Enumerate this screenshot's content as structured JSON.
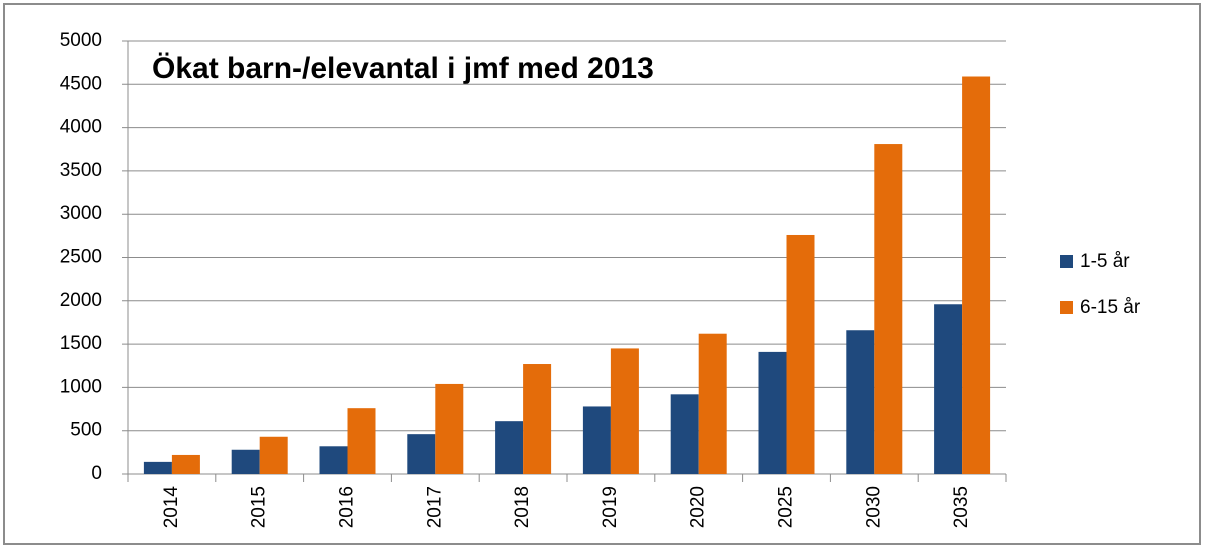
{
  "chart_data": {
    "type": "bar",
    "title": "Ökat barn-/elevantal i jmf med 2013",
    "categories": [
      "2014",
      "2015",
      "2016",
      "2017",
      "2018",
      "2019",
      "2020",
      "2025",
      "2030",
      "2035"
    ],
    "series": [
      {
        "name": "1-5 år",
        "color": "#1f497d",
        "values": [
          140,
          280,
          320,
          460,
          610,
          780,
          920,
          1410,
          1660,
          1960
        ]
      },
      {
        "name": "6-15 år",
        "color": "#e46c0a",
        "values": [
          220,
          430,
          760,
          1040,
          1270,
          1450,
          1620,
          2760,
          3810,
          4590
        ]
      }
    ],
    "ylim": [
      0,
      5000
    ],
    "yticks": [
      0,
      500,
      1000,
      1500,
      2000,
      2500,
      3000,
      3500,
      4000,
      4500,
      5000
    ],
    "grid": true,
    "legend": "right"
  }
}
